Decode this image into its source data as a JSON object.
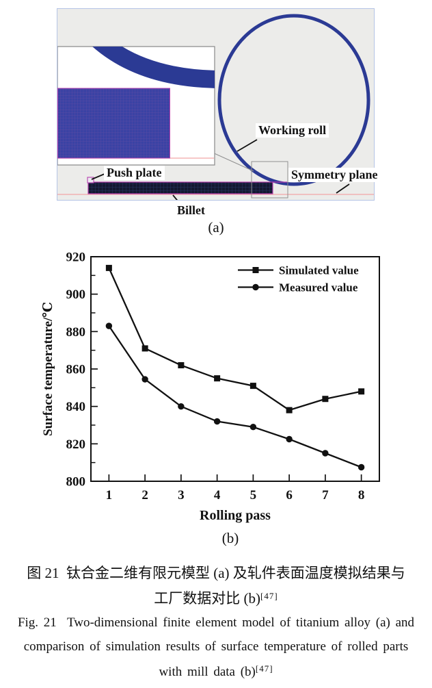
{
  "colors": {
    "panel_bg": "#ececea",
    "panel_border": "#b5c4e6",
    "roll_blue": "#2b3a94",
    "mesh_blue": "#3a42a4",
    "mesh_grid": "#6b50a4",
    "billet_fill": "#141830",
    "billet_grid": "#2c3a6e",
    "magenta": "#b53fae",
    "pink_line": "#f2a6a6",
    "box_gray": "#909090",
    "axis_black": "#111111"
  },
  "figure_a": {
    "labels": {
      "push_plate": "Push plate",
      "working_roll": "Working roll",
      "symmetry_plane": "Symmetry plane",
      "billet": "Billet"
    },
    "caption": "(a)"
  },
  "chart_data": {
    "type": "line",
    "title": "",
    "x": [
      1,
      2,
      3,
      4,
      5,
      6,
      7,
      8
    ],
    "xlabel": "Rolling pass",
    "ylabel": "Surface temperature/℃",
    "xlim": [
      0.5,
      8.5
    ],
    "ylim": [
      800,
      920
    ],
    "y_ticks": [
      800,
      820,
      840,
      860,
      880,
      900,
      920
    ],
    "y_minor_step": 10,
    "grid": false,
    "legend_position": "top-right",
    "series": [
      {
        "name": "Simulated value",
        "marker": "square",
        "color": "#111111",
        "values": [
          914,
          871,
          862,
          855,
          851,
          838,
          844,
          848
        ]
      },
      {
        "name": "Measured value",
        "marker": "circle",
        "color": "#111111",
        "values": [
          883,
          854.5,
          840,
          832,
          829,
          822.5,
          815,
          807.5
        ]
      }
    ],
    "caption": "(b)"
  },
  "caption": {
    "zh_line1": "图 21  钛合金二维有限元模型 (a) 及轧件表面温度模拟结果与",
    "zh_line2": "工厂数据对比 (b)",
    "en_line1": "Fig. 21  Two-dimensional finite element model of titanium alloy (a) and",
    "en_line2": "comparison of simulation results of surface temperature of rolled parts",
    "en_line3": "with mill data (b)",
    "ref": "[47]"
  }
}
